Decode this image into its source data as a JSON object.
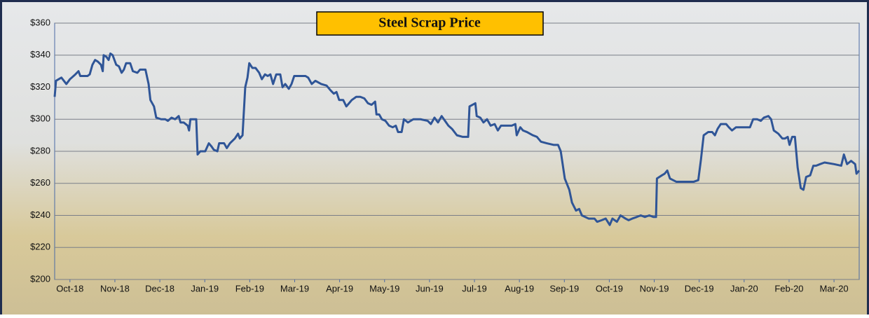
{
  "chart_data": {
    "type": "line",
    "title": "Steel Scrap Price",
    "x": [
      -0.34,
      -0.31,
      -0.19,
      -0.08,
      0,
      0.12,
      0.19,
      0.23,
      0.39,
      0.44,
      0.5,
      0.56,
      0.62,
      0.69,
      0.73,
      0.75,
      0.81,
      0.86,
      0.9,
      0.95,
      1.03,
      1.09,
      1.15,
      1.2,
      1.25,
      1.34,
      1.4,
      1.5,
      1.56,
      1.68,
      1.75,
      1.79,
      1.87,
      1.92,
      2.03,
      2.12,
      2.18,
      2.26,
      2.34,
      2.42,
      2.46,
      2.53,
      2.62,
      2.65,
      2.68,
      2.81,
      2.84,
      2.9,
      3.01,
      3.09,
      3.15,
      3.2,
      3.28,
      3.32,
      3.43,
      3.49,
      3.56,
      3.67,
      3.74,
      3.78,
      3.84,
      3.9,
      3.95,
      3.99,
      4.06,
      4.13,
      4.21,
      4.27,
      4.34,
      4.4,
      4.46,
      4.52,
      4.59,
      4.68,
      4.73,
      4.79,
      4.87,
      4.93,
      4.99,
      5.15,
      5.24,
      5.3,
      5.38,
      5.46,
      5.59,
      5.71,
      5.8,
      5.87,
      5.93,
      5.99,
      6.08,
      6.15,
      6.21,
      6.27,
      6.37,
      6.46,
      6.55,
      6.63,
      6.71,
      6.79,
      6.82,
      6.88,
      6.94,
      7.02,
      7.1,
      7.18,
      7.25,
      7.3,
      7.38,
      7.43,
      7.52,
      7.64,
      7.8,
      7.96,
      8.03,
      8.11,
      8.19,
      8.27,
      8.42,
      8.5,
      8.61,
      8.74,
      8.86,
      8.89,
      9.02,
      9.05,
      9.13,
      9.2,
      9.28,
      9.36,
      9.45,
      9.52,
      9.59,
      9.83,
      9.91,
      9.94,
      10.02,
      10.08,
      10.17,
      10.3,
      10.39,
      10.48,
      10.61,
      10.76,
      10.86,
      10.92,
      11.01,
      11.11,
      11.17,
      11.26,
      11.33,
      11.39,
      11.54,
      11.67,
      11.73,
      11.83,
      11.92,
      12.01,
      12.07,
      12.17,
      12.25,
      12.36,
      12.43,
      12.51,
      12.61,
      12.7,
      12.79,
      12.89,
      12.98,
      13.04,
      13.06,
      13.17,
      13.23,
      13.29,
      13.35,
      13.42,
      13.49,
      13.57,
      13.73,
      13.88,
      13.98,
      14.04,
      14.1,
      14.2,
      14.29,
      14.35,
      14.41,
      14.48,
      14.6,
      14.66,
      14.73,
      14.82,
      14.98,
      15.13,
      15.2,
      15.29,
      15.37,
      15.44,
      15.54,
      15.6,
      15.66,
      15.76,
      15.85,
      15.91,
      15.97,
      16.01,
      16.07,
      16.13,
      16.19,
      16.26,
      16.32,
      16.38,
      16.47,
      16.54,
      16.6,
      16.69,
      16.79,
      17,
      17.16,
      17.22,
      17.29,
      17.38,
      17.47,
      17.5,
      17.56
    ],
    "series": [
      {
        "name": "Steel Scrap Price",
        "color": "#2f5597",
        "values": [
          314,
          324,
          326,
          322,
          325,
          328,
          330,
          327,
          327,
          328,
          334,
          337,
          336,
          334,
          330,
          340,
          339,
          337,
          341,
          340,
          334,
          333,
          329,
          331,
          335,
          335,
          330,
          329,
          331,
          331,
          322,
          312,
          308,
          301,
          300,
          300,
          299,
          301,
          300,
          302,
          298,
          298,
          296,
          293,
          300,
          300,
          278,
          280,
          280,
          285,
          283,
          281,
          280,
          285,
          285,
          282,
          285,
          288,
          291,
          288,
          290,
          320,
          326,
          335,
          332,
          332,
          329,
          325,
          328,
          327,
          328,
          322,
          328,
          328,
          320,
          322,
          319,
          322,
          327,
          327,
          327,
          326,
          322,
          324,
          322,
          321,
          318,
          316,
          317,
          312,
          312,
          308,
          310,
          312,
          314,
          314,
          313,
          310,
          309,
          311,
          303,
          303,
          300,
          299,
          296,
          295,
          296,
          292,
          292,
          300,
          298,
          300,
          300,
          299,
          297,
          301,
          298,
          302,
          296,
          294,
          290,
          289,
          289,
          308,
          310,
          302,
          301,
          298,
          300,
          296,
          297,
          293,
          296,
          296,
          297,
          290,
          295,
          293,
          292,
          290,
          289,
          286,
          285,
          284,
          284,
          280,
          263,
          256,
          248,
          243,
          244,
          240,
          238,
          238,
          236,
          237,
          238,
          234,
          238,
          236,
          240,
          238,
          237,
          238,
          239,
          240,
          239,
          240,
          239,
          239,
          263,
          265,
          266,
          268,
          263,
          262,
          261,
          261,
          261,
          261,
          262,
          275,
          290,
          292,
          292,
          290,
          294,
          297,
          297,
          295,
          293,
          295,
          295,
          295,
          300,
          300,
          299,
          301,
          302,
          300,
          293,
          291,
          288,
          288,
          289,
          284,
          289,
          289,
          270,
          257,
          256,
          264,
          265,
          271,
          271,
          272,
          273,
          272,
          271,
          278,
          272,
          274,
          272,
          266,
          268
        ]
      }
    ],
    "xlim": [
      -0.34,
      17.56
    ],
    "xticks": [
      {
        "value": 0,
        "label": "Oct-18"
      },
      {
        "value": 1,
        "label": "Nov-18"
      },
      {
        "value": 2,
        "label": "Dec-18"
      },
      {
        "value": 3,
        "label": "Jan-19"
      },
      {
        "value": 4,
        "label": "Feb-19"
      },
      {
        "value": 5,
        "label": "Mar-19"
      },
      {
        "value": 6,
        "label": "Apr-19"
      },
      {
        "value": 7,
        "label": "May-19"
      },
      {
        "value": 8,
        "label": "Jun-19"
      },
      {
        "value": 9,
        "label": "Jul-19"
      },
      {
        "value": 10,
        "label": "Aug-19"
      },
      {
        "value": 11,
        "label": "Sep-19"
      },
      {
        "value": 12,
        "label": "Oct-19"
      },
      {
        "value": 13,
        "label": "Nov-19"
      },
      {
        "value": 14,
        "label": "Dec-19"
      },
      {
        "value": 15,
        "label": "Jan-20"
      },
      {
        "value": 16,
        "label": "Feb-20"
      },
      {
        "value": 17,
        "label": "Mar-20"
      }
    ],
    "ylim": [
      200,
      360
    ],
    "yticks": [
      {
        "value": 200,
        "label": "$200"
      },
      {
        "value": 220,
        "label": "$220"
      },
      {
        "value": 240,
        "label": "$240"
      },
      {
        "value": 260,
        "label": "$260"
      },
      {
        "value": 280,
        "label": "$280"
      },
      {
        "value": 300,
        "label": "$300"
      },
      {
        "value": 320,
        "label": "$320"
      },
      {
        "value": 340,
        "label": "$340"
      },
      {
        "value": 360,
        "label": "$360"
      }
    ],
    "grid": true
  }
}
